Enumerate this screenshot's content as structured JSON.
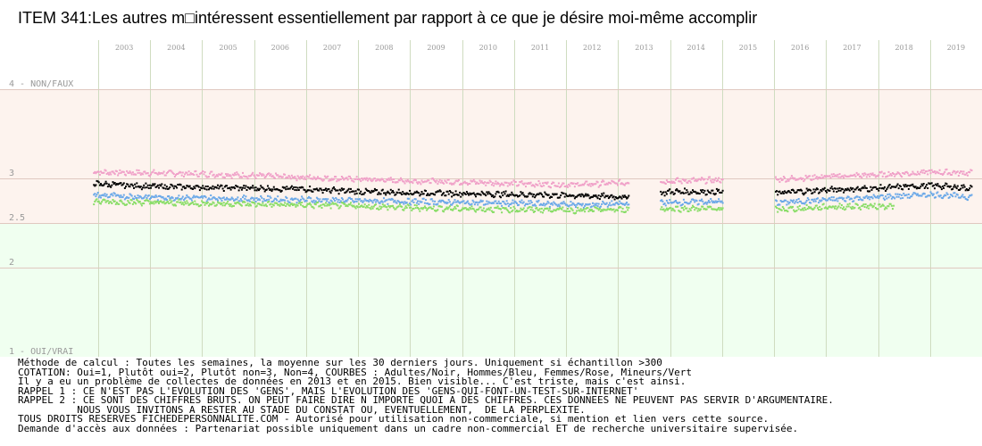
{
  "title": "ITEM 341:Les autres m□intéressent essentiellement par rapport à ce que je désire moi-même accomplir",
  "notes": [
    "Méthode de calcul : Toutes les semaines, la moyenne sur les 30 derniers jours. Uniquement si échantillon >300",
    "COTATION: Oui=1, Plutôt oui=2, Plutôt non=3, Non=4, COURBES : Adultes/Noir, Hommes/Bleu, Femmes/Rose, Mineurs/Vert",
    "Il y a eu un problème de collectes de données en 2013 et en 2015. Bien visible... C'est triste, mais c'est ainsi.",
    "RAPPEL 1 : CE N'EST PAS L'EVOLUTION DES 'GENS', MAIS L'EVOLUTION DES 'GENS-QUI-FONT-UN-TEST-SUR-INTERNET'",
    "RAPPEL 2 : CE SONT DES CHIFFRES BRUTS. ON PEUT FAIRE DIRE N IMPORTE QUOI A DES CHIFFRES. CES DONNEES NE PEUVENT PAS SERVIR D'ARGUMENTAIRE.",
    "          NOUS VOUS INVITONS A RESTER AU STADE DU CONSTAT OU, EVENTUELLEMENT,  DE LA PERPLEXITE.",
    "TOUS DROITS RESERVES FICHEDEPERSONNALITE.COM - Autorisé pour utilisation non-commerciale, si mention et lien vers cette source.",
    "Demande d'accès aux données : Partenariat possible uniquement dans un cadre non-commercial ET de recherche universitaire supervisée."
  ],
  "chart_data": {
    "type": "scatter",
    "x_ticks": [
      "2003",
      "2004",
      "2005",
      "2006",
      "2007",
      "2008",
      "2009",
      "2010",
      "2011",
      "2012",
      "2013",
      "2014",
      "2015",
      "2016",
      "2017",
      "2018",
      "2019"
    ],
    "y_ticks": [
      {
        "value": 4,
        "label": "4 - NON/FAUX"
      },
      {
        "value": 3,
        "label": "3"
      },
      {
        "value": 2.5,
        "label": "2.5"
      },
      {
        "value": 2,
        "label": "2"
      },
      {
        "value": 1,
        "label": "1 - OUI/VRAI"
      }
    ],
    "ylim": [
      1,
      4
    ],
    "xlim": [
      2003,
      2020
    ],
    "bands": [
      {
        "from": 2.5,
        "to": 4,
        "color": "#fdf3ee"
      },
      {
        "from": 1,
        "to": 2.5,
        "color": "#f0fff0"
      }
    ],
    "grid": true,
    "gaps": [
      [
        2013.2,
        2013.8
      ],
      [
        2015.0,
        2016.0
      ]
    ],
    "series": [
      {
        "name": "Femmes",
        "color": "#f0a0c8",
        "points": [
          [
            2002.9,
            3.08
          ],
          [
            2004,
            3.07
          ],
          [
            2005,
            3.06
          ],
          [
            2006,
            3.04
          ],
          [
            2007,
            3.02
          ],
          [
            2008,
            3.0
          ],
          [
            2009,
            2.98
          ],
          [
            2010,
            2.97
          ],
          [
            2011,
            2.95
          ],
          [
            2012,
            2.94
          ],
          [
            2012.2,
            2.94
          ],
          [
            2014,
            2.98
          ],
          [
            2014.8,
            2.99
          ],
          [
            2016.1,
            3.0
          ],
          [
            2017,
            3.03
          ],
          [
            2018,
            3.05
          ],
          [
            2019,
            3.08
          ],
          [
            2019.8,
            3.07
          ]
        ]
      },
      {
        "name": "Adultes",
        "color": "#000000",
        "points": [
          [
            2002.9,
            2.95
          ],
          [
            2004,
            2.92
          ],
          [
            2005,
            2.91
          ],
          [
            2006,
            2.9
          ],
          [
            2007,
            2.89
          ],
          [
            2008,
            2.86
          ],
          [
            2009,
            2.85
          ],
          [
            2010,
            2.84
          ],
          [
            2011,
            2.83
          ],
          [
            2012,
            2.82
          ],
          [
            2013.2,
            2.8
          ],
          [
            2014,
            2.86
          ],
          [
            2014.8,
            2.86
          ],
          [
            2016.1,
            2.85
          ],
          [
            2017,
            2.88
          ],
          [
            2018,
            2.9
          ],
          [
            2019,
            2.93
          ],
          [
            2019.8,
            2.9
          ]
        ]
      },
      {
        "name": "Hommes",
        "color": "#6aa8e8",
        "points": [
          [
            2002.9,
            2.82
          ],
          [
            2004,
            2.8
          ],
          [
            2005,
            2.79
          ],
          [
            2006,
            2.78
          ],
          [
            2007,
            2.77
          ],
          [
            2008,
            2.76
          ],
          [
            2009,
            2.75
          ],
          [
            2010,
            2.74
          ],
          [
            2011,
            2.73
          ],
          [
            2012,
            2.72
          ],
          [
            2012.2,
            2.71
          ],
          [
            2014,
            2.74
          ],
          [
            2014.8,
            2.75
          ],
          [
            2016.1,
            2.74
          ],
          [
            2017,
            2.77
          ],
          [
            2018,
            2.8
          ],
          [
            2019,
            2.83
          ],
          [
            2019.8,
            2.8
          ]
        ]
      },
      {
        "name": "Mineurs",
        "color": "#88dd66",
        "points": [
          [
            2002.9,
            2.75
          ],
          [
            2004,
            2.74
          ],
          [
            2005,
            2.73
          ],
          [
            2006,
            2.72
          ],
          [
            2007,
            2.71
          ],
          [
            2008,
            2.7
          ],
          [
            2009,
            2.68
          ],
          [
            2010,
            2.67
          ],
          [
            2011,
            2.66
          ],
          [
            2012,
            2.66
          ],
          [
            2012.2,
            2.65
          ],
          [
            2014,
            2.67
          ],
          [
            2014.8,
            2.67
          ],
          [
            2016.1,
            2.66
          ],
          [
            2017,
            2.69
          ],
          [
            2018,
            2.7
          ],
          [
            2018.3,
            2.7
          ]
        ]
      }
    ]
  }
}
